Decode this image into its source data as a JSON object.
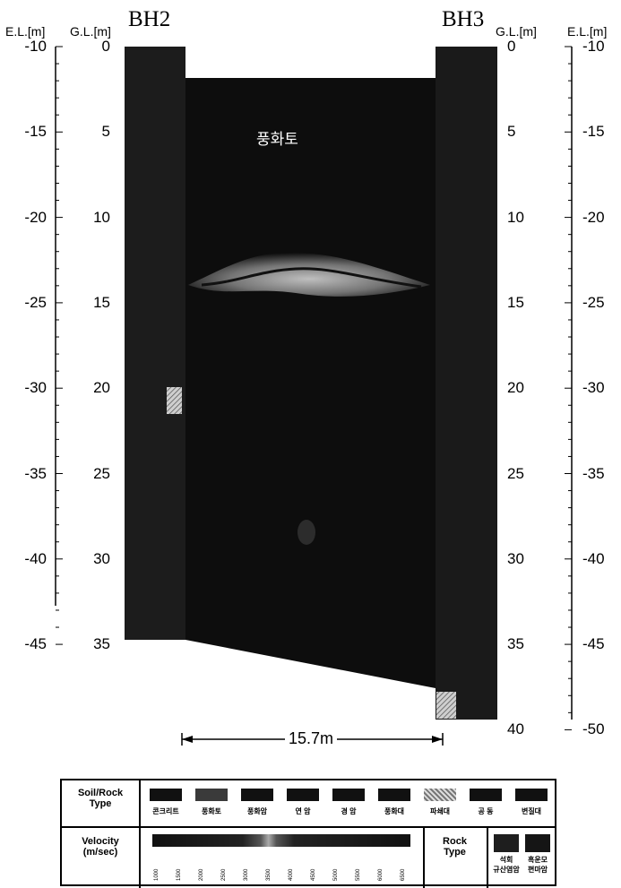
{
  "headers": {
    "bh_left": "BH2",
    "bh_right": "BH3",
    "el_left": "E.L.[m]",
    "gl_left": "G.L.[m]",
    "gl_right": "G.L.[m]",
    "el_right": "E.L.[m]"
  },
  "axes": {
    "el_left_ticks": [
      "-10",
      "-15",
      "-20",
      "-25",
      "-30",
      "-35",
      "-40",
      "-45"
    ],
    "gl_left_ticks": [
      "0",
      "5",
      "10",
      "15",
      "20",
      "25",
      "30",
      "35"
    ],
    "gl_right_ticks": [
      "0",
      "5",
      "10",
      "15",
      "20",
      "25",
      "30",
      "35",
      "40"
    ],
    "el_right_ticks": [
      "-10",
      "-15",
      "-20",
      "-25",
      "-30",
      "-35",
      "-40",
      "-45",
      "-50"
    ]
  },
  "section": {
    "layer_label": "풍화토",
    "distance_label": "15.7m"
  },
  "legend": {
    "soil_rock_title": "Soil/Rock\nType",
    "soil_rock_types": [
      "콘크리트",
      "풍화토",
      "풍화암",
      "연 암",
      "경 암",
      "풍화대",
      "파쇄대",
      "공 동",
      "변질대"
    ],
    "velocity_title": "Velocity\n(m/sec)",
    "velocity_ticks": [
      "1000",
      "1500",
      "2000",
      "2500",
      "3000",
      "3500",
      "4000",
      "4500",
      "5000",
      "5500",
      "6000",
      "6500"
    ],
    "rock_type_title": "Rock\nType",
    "rock_types": [
      "석회\n규산염암",
      "흑운모\n편마암"
    ]
  },
  "colors": {
    "section_fill": "#0d0d0d",
    "fracture_zone": "#b9b9b9",
    "background": "#ffffff"
  }
}
